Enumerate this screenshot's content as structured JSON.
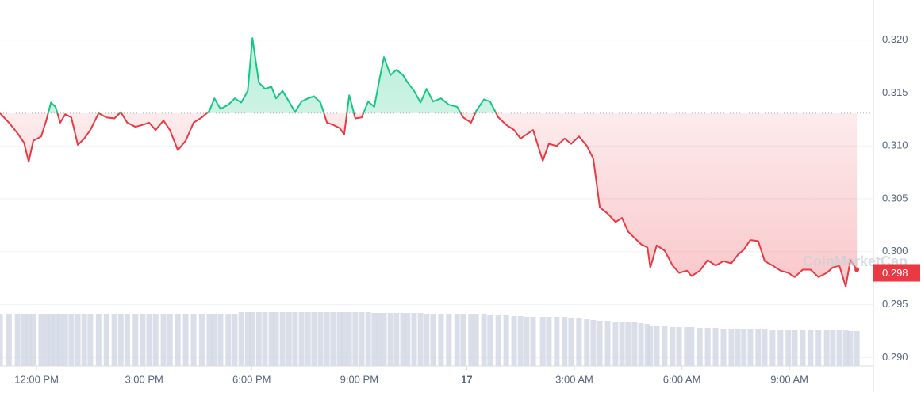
{
  "chart_data": {
    "type": "line",
    "x": [
      10.98,
      11.23,
      11.47,
      11.65,
      11.78,
      11.91,
      12.13,
      12.27,
      12.4,
      12.53,
      12.66,
      12.8,
      12.97,
      13.15,
      13.33,
      13.5,
      13.73,
      13.95,
      14.17,
      14.35,
      14.53,
      14.76,
      14.96,
      15.14,
      15.32,
      15.54,
      15.72,
      15.94,
      16.16,
      16.38,
      16.61,
      16.82,
      16.96,
      17.13,
      17.35,
      17.53,
      17.71,
      17.89,
      18.02,
      18.2,
      18.37,
      18.55,
      18.68,
      18.86,
      19.04,
      19.21,
      19.39,
      19.57,
      19.74,
      19.92,
      20.1,
      20.27,
      20.45,
      20.58,
      20.72,
      20.89,
      21.07,
      21.25,
      21.42,
      21.56,
      21.69,
      21.87,
      22.04,
      22.22,
      22.35,
      22.53,
      22.71,
      22.88,
      23.06,
      23.28,
      23.5,
      23.73,
      23.9,
      24.12,
      24.26,
      24.48,
      24.65,
      24.88,
      25.1,
      25.32,
      25.5,
      25.67,
      25.85,
      26.12,
      26.29,
      26.51,
      26.73,
      26.91,
      27.13,
      27.35,
      27.53,
      27.71,
      27.93,
      28.15,
      28.33,
      28.5,
      28.68,
      28.86,
      29.04,
      29.12,
      29.3,
      29.52,
      29.74,
      29.92,
      30.14,
      30.27,
      30.5,
      30.72,
      30.94,
      31.16,
      31.38,
      31.56,
      31.73,
      31.91,
      32.13,
      32.31,
      32.53,
      32.75,
      32.97,
      33.15,
      33.37,
      33.59,
      33.81,
      34.04,
      34.21,
      34.39,
      34.57,
      34.7,
      34.88
    ],
    "values": [
      0.3131,
      0.3122,
      0.3112,
      0.3103,
      0.3085,
      0.3105,
      0.3109,
      0.3124,
      0.3141,
      0.3137,
      0.3122,
      0.313,
      0.3127,
      0.3101,
      0.3107,
      0.3115,
      0.3131,
      0.3127,
      0.3126,
      0.3132,
      0.3122,
      0.3118,
      0.312,
      0.3122,
      0.3115,
      0.3124,
      0.3115,
      0.3096,
      0.3105,
      0.3122,
      0.3127,
      0.3133,
      0.3145,
      0.3135,
      0.3139,
      0.3145,
      0.3141,
      0.3152,
      0.3202,
      0.316,
      0.3154,
      0.3156,
      0.3145,
      0.3152,
      0.3142,
      0.3132,
      0.3142,
      0.3145,
      0.3147,
      0.3141,
      0.3122,
      0.312,
      0.3117,
      0.3111,
      0.3148,
      0.3126,
      0.3127,
      0.3142,
      0.3137,
      0.3162,
      0.3184,
      0.3167,
      0.3172,
      0.3167,
      0.316,
      0.3152,
      0.3141,
      0.3154,
      0.3142,
      0.3145,
      0.3139,
      0.3137,
      0.3127,
      0.3122,
      0.3133,
      0.3144,
      0.3142,
      0.3127,
      0.312,
      0.3115,
      0.3107,
      0.3111,
      0.3115,
      0.3086,
      0.3102,
      0.31,
      0.3107,
      0.3102,
      0.3109,
      0.31,
      0.3088,
      0.3042,
      0.3036,
      0.3028,
      0.3032,
      0.3019,
      0.3013,
      0.3007,
      0.3004,
      0.2985,
      0.3006,
      0.3001,
      0.2987,
      0.298,
      0.2982,
      0.2977,
      0.2982,
      0.2992,
      0.2987,
      0.2991,
      0.2989,
      0.2997,
      0.3002,
      0.3011,
      0.301,
      0.2991,
      0.2987,
      0.2982,
      0.298,
      0.2976,
      0.2983,
      0.2983,
      0.2976,
      0.298,
      0.2985,
      0.2987,
      0.2967,
      0.2992,
      0.2983
    ],
    "volume": [
      66,
      66,
      66,
      66,
      66,
      66,
      66,
      66,
      66,
      66,
      66,
      66,
      66,
      66,
      66,
      66,
      66,
      66,
      66,
      66,
      66,
      66,
      66,
      66,
      66,
      66,
      66,
      66,
      66,
      66,
      66,
      66,
      66,
      66,
      66,
      66,
      68,
      68,
      68,
      68,
      68,
      68,
      68,
      68,
      68,
      68,
      68,
      68,
      68,
      68,
      68,
      68,
      68,
      68,
      68,
      68,
      68,
      68,
      67,
      67,
      67,
      67,
      67,
      67,
      67,
      67,
      67,
      66,
      66,
      66,
      66,
      66,
      65,
      65,
      65,
      65,
      64,
      64,
      64,
      63,
      63,
      62,
      62,
      62,
      62,
      62,
      62,
      61,
      61,
      59,
      58,
      57,
      57,
      56,
      56,
      55,
      55,
      54,
      53,
      51,
      50,
      50,
      49,
      49,
      49,
      49,
      48,
      48,
      48,
      47,
      47,
      47,
      47,
      46,
      46,
      46,
      45,
      45,
      45,
      45,
      45,
      45,
      45,
      45,
      45,
      45,
      45,
      44,
      44
    ],
    "reference_price": 0.3131,
    "current_price": 0.298,
    "watermark": "CoinMarketCap",
    "up_color": "#16c784",
    "down_color": "#ea3943",
    "volume_color": "#cfd6e4",
    "xlim": [
      10.98,
      35.32
    ],
    "xticks": [
      {
        "value": 12,
        "label": "12:00 PM"
      },
      {
        "value": 15,
        "label": "3:00 PM"
      },
      {
        "value": 18,
        "label": "6:00 PM"
      },
      {
        "value": 21,
        "label": "9:00 PM"
      },
      {
        "value": 24,
        "label": "17"
      },
      {
        "value": 27,
        "label": "3:00 AM"
      },
      {
        "value": 30,
        "label": "6:00 AM"
      },
      {
        "value": 33,
        "label": "9:00 AM"
      }
    ],
    "ylim": [
      0.2892,
      0.3238
    ],
    "yticks": [
      {
        "value": 0.29,
        "label": "0.290"
      },
      0.295,
      {
        "value": 0.3,
        "label": "0.300"
      },
      0.305,
      {
        "value": 0.31,
        "label": "0.310"
      },
      0.315,
      {
        "value": 0.32,
        "label": "0.320"
      }
    ],
    "grid": true
  }
}
